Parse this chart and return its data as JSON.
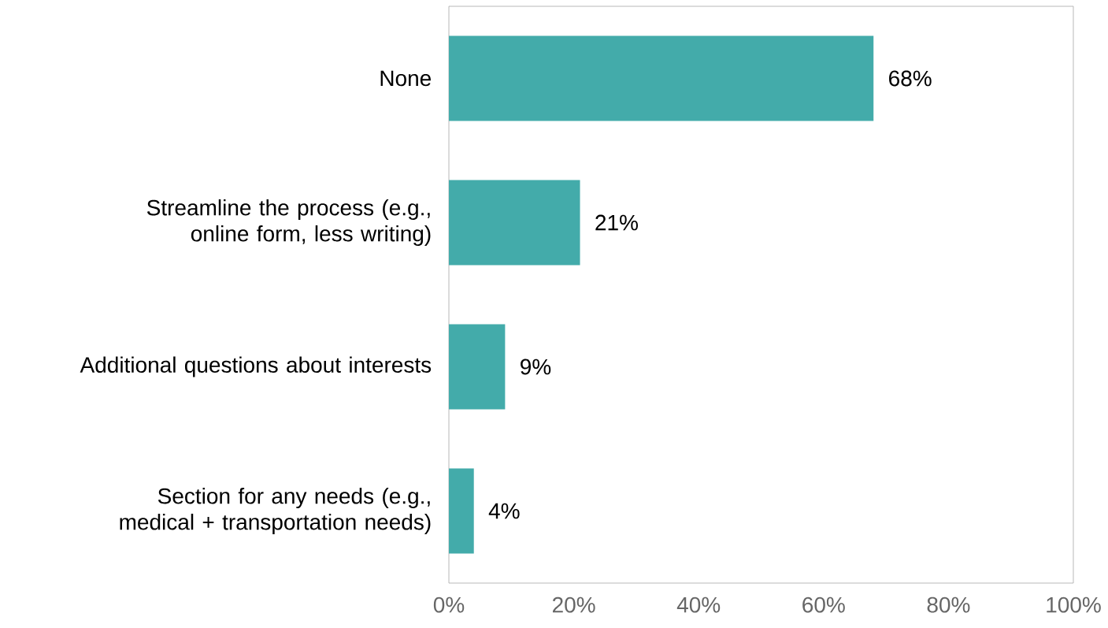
{
  "chart_data": {
    "type": "bar",
    "orientation": "horizontal",
    "categories": [
      "None",
      "Streamline the process (e.g., online form, less writing)",
      "Additional questions about interests",
      "Section for any needs (e.g., medical + transportation needs)"
    ],
    "values": [
      68,
      21,
      9,
      4
    ],
    "value_labels": [
      "68%",
      "21%",
      "9%",
      "4%"
    ],
    "color": "#43abaa",
    "xlim": [
      0,
      100
    ],
    "xticks": [
      {
        "value": 0,
        "label": "0%"
      },
      {
        "value": 20,
        "label": "20%"
      },
      {
        "value": 40,
        "label": "40%"
      },
      {
        "value": 60,
        "label": "60%"
      },
      {
        "value": 80,
        "label": "80%"
      },
      {
        "value": 100,
        "label": "100%"
      }
    ]
  }
}
